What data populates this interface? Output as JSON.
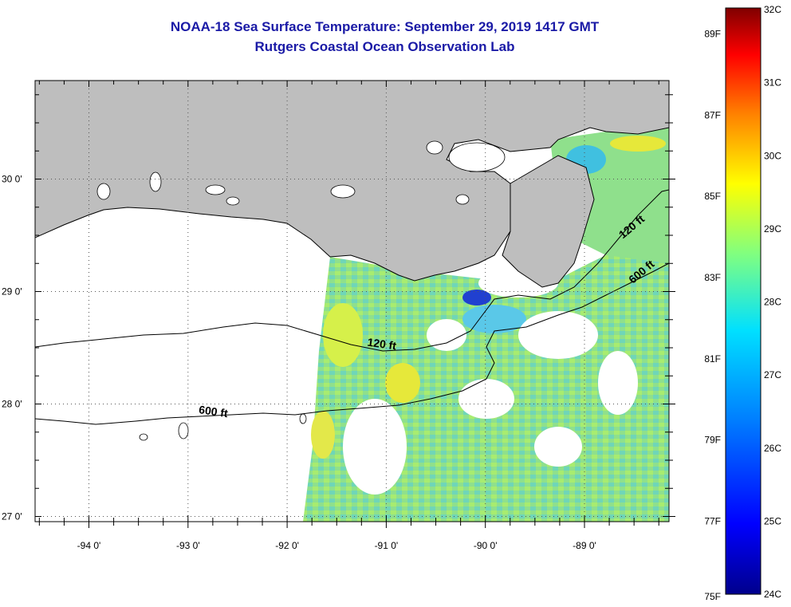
{
  "title": {
    "line1": "NOAA-18 Sea Surface Temperature:  September 29, 2019 1417 GMT",
    "line2": "Rutgers Coastal Ocean Observation Lab"
  },
  "map": {
    "lon_range": [
      -94.5,
      -88.0
    ],
    "lat_range": [
      26.95,
      30.9
    ],
    "lon_ticks": [
      {
        "value": -94,
        "label": "-94 0'"
      },
      {
        "value": -93,
        "label": "-93 0'"
      },
      {
        "value": -92,
        "label": "-92 0'"
      },
      {
        "value": -91,
        "label": "-91 0'"
      },
      {
        "value": -90,
        "label": "-90 0'"
      },
      {
        "value": -89,
        "label": "-89 0'"
      }
    ],
    "lat_ticks": [
      {
        "value": 30,
        "label": "30 0'"
      },
      {
        "value": 29,
        "label": "29 0'"
      },
      {
        "value": 28,
        "label": "28 0'"
      },
      {
        "value": 27,
        "label": "27 0'"
      }
    ],
    "land_color": "#bebebe",
    "contour_labels": [
      {
        "text": "120 ft",
        "lon": -91.05,
        "lat": 28.5
      },
      {
        "text": "600 ft",
        "lon": -92.75,
        "lat": 27.9
      },
      {
        "text": "120 ft",
        "lon": -88.5,
        "lat": 29.55
      },
      {
        "text": "600 ft",
        "lon": -88.4,
        "lat": 29.15
      }
    ]
  },
  "colorbar": {
    "celsius": [
      {
        "value": 32,
        "label": "32C"
      },
      {
        "value": 31,
        "label": "31C"
      },
      {
        "value": 30,
        "label": "30C"
      },
      {
        "value": 29,
        "label": "29C"
      },
      {
        "value": 28,
        "label": "28C"
      },
      {
        "value": 27,
        "label": "27C"
      },
      {
        "value": 26,
        "label": "26C"
      },
      {
        "value": 25,
        "label": "25C"
      },
      {
        "value": 24,
        "label": "24C"
      }
    ],
    "fahrenheit": [
      {
        "value": 89,
        "label": "89F"
      },
      {
        "value": 87,
        "label": "87F"
      },
      {
        "value": 85,
        "label": "85F"
      },
      {
        "value": 83,
        "label": "83F"
      },
      {
        "value": 81,
        "label": "81F"
      },
      {
        "value": 79,
        "label": "79F"
      },
      {
        "value": 77,
        "label": "77F"
      },
      {
        "value": 75,
        "label": "75F"
      }
    ],
    "stops": [
      "#00008c",
      "#0000ff",
      "#0080ff",
      "#00e0ff",
      "#80ff80",
      "#ffff00",
      "#ff8000",
      "#ff0000",
      "#800000"
    ]
  }
}
